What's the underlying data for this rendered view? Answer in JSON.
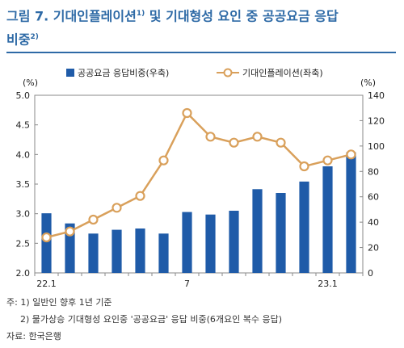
{
  "header": {
    "title_line1": "그림 7. 기대인플레이션",
    "title_sup": "1)",
    "title_line1_rest": " 및 기대형성 요인 중 공공요금 응답",
    "title_line2": "비중",
    "title_line2_sup": "2)"
  },
  "chart_data": {
    "type": "bar+line",
    "x_tick_labels": [
      {
        "index": 0,
        "label": "22.1"
      },
      {
        "index": 6,
        "label": "7"
      },
      {
        "index": 12,
        "label": "23.1"
      }
    ],
    "left_axis": {
      "unit": "(%)",
      "ylim": [
        2.0,
        5.0
      ],
      "ticks": [
        "2.0",
        "2.5",
        "3.0",
        "3.5",
        "4.0",
        "4.5",
        "5.0"
      ]
    },
    "right_axis": {
      "unit": "(%)",
      "ylim": [
        0,
        140
      ],
      "ticks": [
        "0",
        "20",
        "40",
        "60",
        "80",
        "100",
        "120",
        "140"
      ]
    },
    "series": [
      {
        "name": "공공요금 응답비중(우축)",
        "kind": "bar",
        "axis": "right",
        "color": "#1f5ba8",
        "values": [
          47.0,
          39.0,
          31.0,
          34.0,
          35.0,
          31.0,
          48.0,
          46.0,
          49.0,
          66.0,
          63.0,
          72.0,
          84.0,
          95.0
        ]
      },
      {
        "name": "기대인플레이션(좌축)",
        "kind": "line",
        "axis": "left",
        "color": "#d9a05b",
        "values": [
          2.6,
          2.7,
          2.9,
          3.1,
          3.3,
          3.9,
          4.7,
          4.3,
          4.2,
          4.3,
          4.2,
          3.8,
          3.9,
          4.0
        ]
      }
    ],
    "legend_placement": "top",
    "grid": false
  },
  "notes": {
    "note1": "주: 1) 일반인 향후 1년 기준",
    "note2": "2) 물가상승 기대형성 요인중 '공공요금' 응답 비중(6개요인 복수 응답)",
    "source": "자료: 한국은행"
  }
}
